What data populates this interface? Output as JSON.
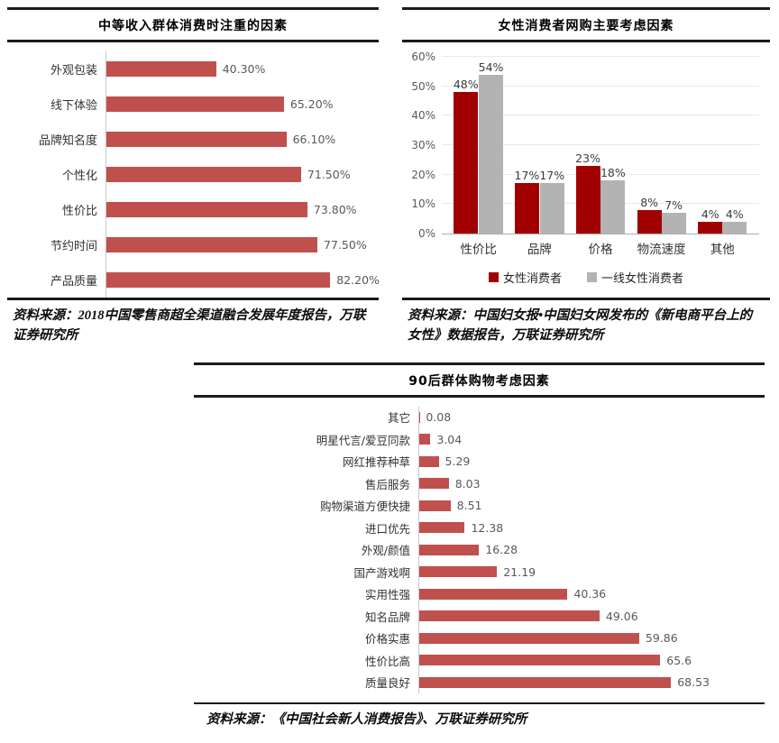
{
  "colors": {
    "bar_red_muted": "#c0504d",
    "bar_red_dark": "#a00000",
    "bar_gray": "#b3b3b3",
    "grid": "#e9e9e9",
    "value_label": "#595959",
    "rule": "#1b1b1b"
  },
  "chart_data": [
    {
      "type": "bar",
      "orientation": "horizontal",
      "title": "中等收入群体消费时注重的因素",
      "categories": [
        "外观包装",
        "线下体验",
        "品牌知名度",
        "个性化",
        "性价比",
        "节约时间",
        "产品质量"
      ],
      "values": [
        40.3,
        65.2,
        66.1,
        71.5,
        73.8,
        77.5,
        82.2
      ],
      "labels": [
        "40.30%",
        "65.20%",
        "66.10%",
        "71.50%",
        "73.80%",
        "77.50%",
        "82.20%"
      ],
      "bar_color": "#c0504d",
      "xlim": [
        0,
        100
      ],
      "grid": false,
      "source": "资料来源：2018中国零售商超全渠道融合发展年度报告，万联证券研究所"
    },
    {
      "type": "bar",
      "orientation": "vertical",
      "title": "女性消费者网购主要考虑因素",
      "categories": [
        "性价比",
        "品牌",
        "价格",
        "物流速度",
        "其他"
      ],
      "series": [
        {
          "name": "女性消费者",
          "color": "#a00000",
          "values": [
            48,
            17,
            23,
            8,
            4
          ],
          "labels": [
            "48%",
            "17%",
            "23%",
            "8%",
            "4%"
          ]
        },
        {
          "name": "一线女性消费者",
          "color": "#b3b3b3",
          "values": [
            54,
            17,
            18,
            7,
            4
          ],
          "labels": [
            "54%",
            "17%",
            "18%",
            "7%",
            "4%"
          ]
        }
      ],
      "ylim": [
        0,
        60
      ],
      "yticks": [
        "0%",
        "10%",
        "20%",
        "30%",
        "40%",
        "50%",
        "60%"
      ],
      "grid": true,
      "legend_position": "bottom",
      "source": "资料来源：中国妇女报•中国妇女网发布的《新电商平台上的女性》数据报告，万联证券研究所"
    },
    {
      "type": "bar",
      "orientation": "horizontal",
      "title": "90后群体购物考虑因素",
      "categories": [
        "其它",
        "明星代言/爱豆同款",
        "网红推荐种草",
        "售后服务",
        "购物渠道方便快捷",
        "进口优先",
        "外观/颜值",
        "国产游戏啊",
        "实用性强",
        "知名品牌",
        "价格实惠",
        "性价比高",
        "质量良好"
      ],
      "values": [
        0.08,
        3.04,
        5.29,
        8.03,
        8.51,
        12.38,
        16.28,
        21.19,
        40.36,
        49.06,
        59.86,
        65.6,
        68.53
      ],
      "labels": [
        "0.08",
        "3.04",
        "5.29",
        "8.03",
        "8.51",
        "12.38",
        "16.28",
        "21.19",
        "40.36",
        "49.06",
        "59.86",
        "65.6",
        "68.53"
      ],
      "bar_color": "#c0504d",
      "xlim": [
        0,
        94
      ],
      "grid": false,
      "source": "资料来源：《中国社会新人消费报告》、万联证券研究所"
    }
  ]
}
